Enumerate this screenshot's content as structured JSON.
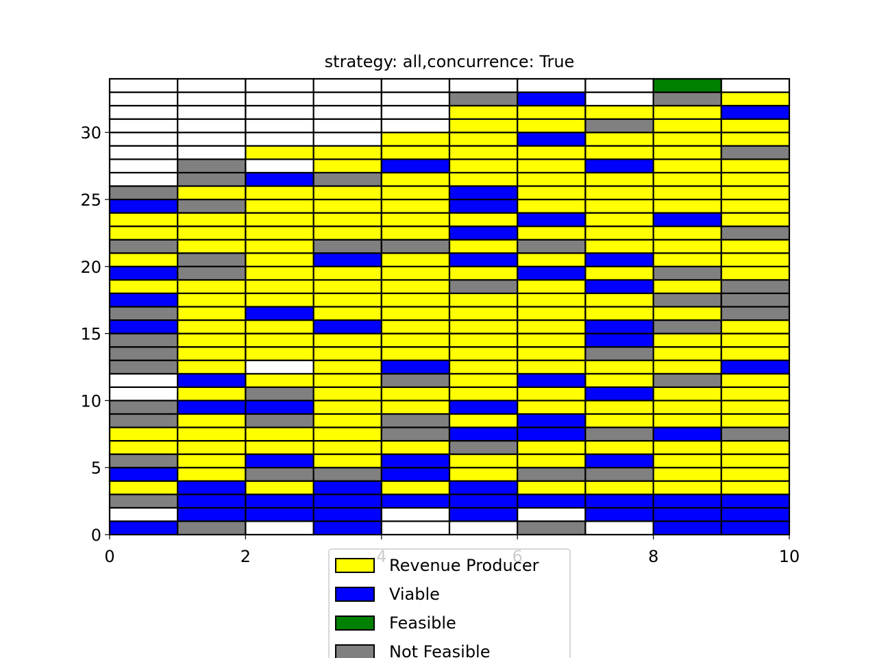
{
  "chart_data": {
    "type": "heatmap",
    "title": "strategy: all,concurrence: True",
    "xlabel": "",
    "ylabel": "",
    "xlim": [
      0,
      10
    ],
    "ylim": [
      0,
      34
    ],
    "x_ticks": [
      0,
      2,
      4,
      6,
      8,
      10
    ],
    "y_ticks": [
      0,
      5,
      10,
      15,
      20,
      25,
      30
    ],
    "x_tick_labels": [
      "0",
      "2",
      "4",
      "6",
      "8",
      "10"
    ],
    "y_tick_labels": [
      "0",
      "5",
      "10",
      "15",
      "20",
      "25",
      "30"
    ],
    "legend_position": "bottom-center",
    "categories": [
      {
        "code": "R",
        "name": "Revenue Producer",
        "color": "#ffff00"
      },
      {
        "code": "V",
        "name": "Viable",
        "color": "#0000ff"
      },
      {
        "code": "F",
        "name": "Feasible",
        "color": "#008000"
      },
      {
        "code": "N",
        "name": "Not Feasible",
        "color": "#808080"
      }
    ],
    "empty_color": "#ffffff",
    "column_x_start": [
      0,
      1,
      2,
      3,
      4,
      5,
      6,
      7,
      8,
      9
    ],
    "row_y_start": [
      0,
      1,
      2,
      3,
      4,
      5,
      6,
      7,
      8,
      9,
      10,
      11,
      12,
      13,
      14,
      15,
      16,
      17,
      18,
      19,
      20,
      21,
      22,
      23,
      24,
      25,
      26,
      27,
      28,
      29,
      30,
      31,
      32,
      33
    ],
    "cells_by_column": [
      [
        "V",
        "W",
        "N",
        "R",
        "V",
        "N",
        "R",
        "R",
        "N",
        "N",
        "W",
        "W",
        "N",
        "N",
        "N",
        "V",
        "N",
        "V",
        "R",
        "V",
        "R",
        "N",
        "R",
        "R",
        "V",
        "N",
        "W",
        "W",
        "W",
        "W",
        "W",
        "W",
        "W",
        "W"
      ],
      [
        "N",
        "V",
        "V",
        "V",
        "R",
        "R",
        "R",
        "R",
        "R",
        "V",
        "R",
        "V",
        "R",
        "R",
        "R",
        "R",
        "R",
        "R",
        "R",
        "N",
        "N",
        "R",
        "R",
        "R",
        "N",
        "R",
        "N",
        "N",
        "W",
        "W",
        "W",
        "W",
        "W",
        "W"
      ],
      [
        "W",
        "V",
        "V",
        "R",
        "N",
        "V",
        "R",
        "R",
        "N",
        "V",
        "N",
        "R",
        "W",
        "R",
        "R",
        "R",
        "V",
        "R",
        "R",
        "R",
        "R",
        "R",
        "R",
        "R",
        "R",
        "R",
        "V",
        "W",
        "R",
        "W",
        "W",
        "W",
        "W",
        "W"
      ],
      [
        "V",
        "V",
        "V",
        "V",
        "N",
        "R",
        "R",
        "R",
        "R",
        "R",
        "R",
        "R",
        "R",
        "R",
        "R",
        "V",
        "R",
        "R",
        "R",
        "R",
        "V",
        "N",
        "R",
        "R",
        "R",
        "R",
        "N",
        "R",
        "R",
        "W",
        "W",
        "W",
        "W",
        "W"
      ],
      [
        "W",
        "W",
        "V",
        "R",
        "V",
        "V",
        "R",
        "N",
        "N",
        "R",
        "R",
        "N",
        "V",
        "R",
        "R",
        "R",
        "R",
        "R",
        "R",
        "R",
        "R",
        "N",
        "R",
        "R",
        "R",
        "R",
        "R",
        "V",
        "R",
        "R",
        "W",
        "W",
        "W",
        "W"
      ],
      [
        "W",
        "V",
        "V",
        "V",
        "R",
        "R",
        "N",
        "V",
        "R",
        "V",
        "R",
        "R",
        "R",
        "R",
        "R",
        "R",
        "R",
        "R",
        "N",
        "R",
        "V",
        "R",
        "V",
        "R",
        "V",
        "V",
        "R",
        "R",
        "R",
        "R",
        "R",
        "R",
        "N",
        "W"
      ],
      [
        "N",
        "W",
        "V",
        "R",
        "N",
        "R",
        "R",
        "V",
        "V",
        "R",
        "R",
        "V",
        "R",
        "R",
        "R",
        "R",
        "R",
        "R",
        "R",
        "V",
        "R",
        "N",
        "R",
        "V",
        "R",
        "R",
        "R",
        "R",
        "R",
        "V",
        "R",
        "R",
        "V",
        "W"
      ],
      [
        "W",
        "V",
        "V",
        "R",
        "N",
        "V",
        "R",
        "N",
        "R",
        "R",
        "V",
        "R",
        "R",
        "N",
        "V",
        "V",
        "R",
        "R",
        "V",
        "R",
        "V",
        "R",
        "R",
        "R",
        "R",
        "R",
        "R",
        "V",
        "R",
        "R",
        "N",
        "R",
        "W",
        "W"
      ],
      [
        "V",
        "V",
        "V",
        "R",
        "R",
        "R",
        "R",
        "V",
        "R",
        "R",
        "R",
        "N",
        "R",
        "R",
        "R",
        "N",
        "R",
        "N",
        "R",
        "N",
        "R",
        "R",
        "R",
        "V",
        "R",
        "R",
        "R",
        "R",
        "R",
        "R",
        "R",
        "R",
        "N",
        "F"
      ],
      [
        "V",
        "V",
        "V",
        "R",
        "R",
        "R",
        "R",
        "N",
        "R",
        "R",
        "R",
        "R",
        "V",
        "R",
        "R",
        "R",
        "N",
        "N",
        "N",
        "R",
        "R",
        "R",
        "N",
        "R",
        "R",
        "R",
        "R",
        "R",
        "N",
        "R",
        "R",
        "V",
        "R",
        "W"
      ]
    ]
  }
}
